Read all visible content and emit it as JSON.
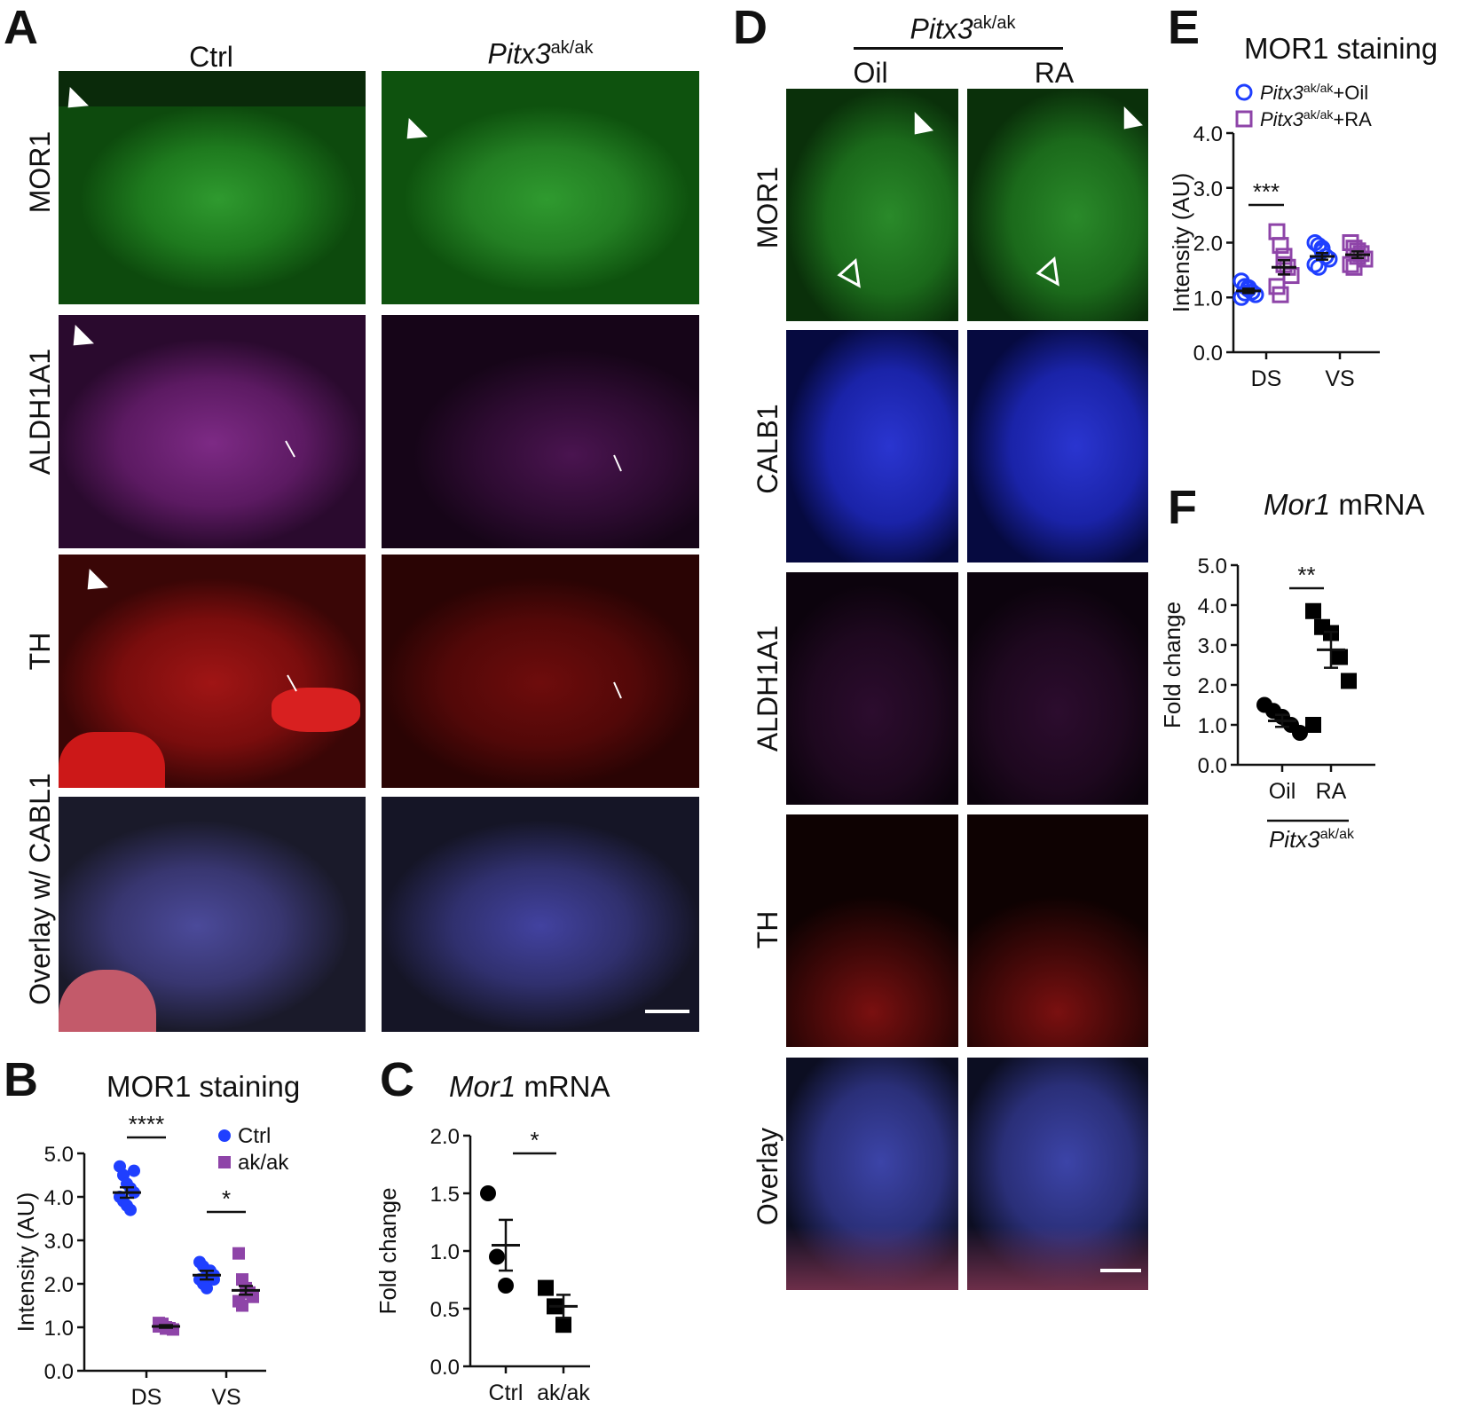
{
  "panels": {
    "A": {
      "letter": "A",
      "col_headers": [
        {
          "main": "Ctrl",
          "sup": ""
        },
        {
          "main": "Pitx3",
          "sup": "ak/ak"
        }
      ],
      "row_labels": [
        "MOR1",
        "ALDH1A1",
        "TH",
        "Overlay w/ CABL1"
      ],
      "channel_colors": [
        "#1f8a1f",
        "#6a1c6f",
        "#8a1010",
        "#4a4a7a"
      ]
    },
    "B": {
      "letter": "B",
      "title": "MOR1 staining"
    },
    "C": {
      "letter": "C",
      "title_italic": "Mor1",
      "title_rest": " mRNA"
    },
    "D": {
      "letter": "D",
      "group_main": "Pitx3",
      "group_sup": "ak/ak",
      "col_headers": [
        "Oil",
        "RA"
      ],
      "row_labels": [
        "MOR1",
        "CALB1",
        "ALDH1A1",
        "TH",
        "Overlay"
      ],
      "channel_colors": [
        "#1f8a1f",
        "#1420b0",
        "#3a0d3c",
        "#4a0a0a",
        "#3a3a70"
      ]
    },
    "E": {
      "letter": "E",
      "title": "MOR1 staining"
    },
    "F": {
      "letter": "F",
      "title_italic": "Mor1",
      "title_rest": " mRNA"
    }
  },
  "chart_data": [
    {
      "id": "B",
      "type": "scatter",
      "title": "MOR1 staining",
      "ylabel": "Intensity (AU)",
      "xlabel": "",
      "categories": [
        "DS",
        "VS"
      ],
      "ylim": [
        0,
        5
      ],
      "yticks": [
        "0.0",
        "1.0",
        "2.0",
        "3.0",
        "4.0",
        "5.0"
      ],
      "series": [
        {
          "name": "Ctrl",
          "color": "#1f3fff",
          "marker": "circle-filled",
          "means": [
            4.1,
            2.2
          ],
          "sem": [
            0.12,
            0.1
          ],
          "points": [
            [
              4.7,
              4.5,
              4.3,
              4.2,
              4.1,
              4.0,
              3.9,
              3.8,
              3.7,
              4.6
            ],
            [
              2.5,
              2.4,
              2.3,
              2.2,
              2.2,
              2.1,
              2.0,
              1.9,
              2.3,
              2.1
            ]
          ]
        },
        {
          "name": "ak/ak",
          "color": "#8e44a8",
          "marker": "square-filled",
          "means": [
            1.02,
            1.85
          ],
          "sem": [
            0.03,
            0.1
          ],
          "points": [
            [
              1.1,
              1.05,
              1.0,
              0.98,
              0.95,
              1.02,
              1.08,
              0.97
            ],
            [
              2.7,
              2.1,
              1.9,
              1.8,
              1.7,
              1.6,
              1.5,
              1.85
            ]
          ]
        }
      ],
      "significance": [
        {
          "category": "DS",
          "text": "****"
        },
        {
          "category": "VS",
          "text": "*"
        }
      ],
      "legend": "top-right"
    },
    {
      "id": "C",
      "type": "scatter",
      "title": "Mor1 mRNA",
      "ylabel": "Fold change",
      "xlabel": "",
      "categories": [
        "Ctrl",
        "ak/ak"
      ],
      "ylim": [
        0,
        2
      ],
      "yticks": [
        "0.0",
        "0.5",
        "1.0",
        "1.5",
        "2.0"
      ],
      "series": [
        {
          "name": "Ctrl",
          "color": "#000000",
          "marker": "circle-filled",
          "means": [
            1.05
          ],
          "sem": [
            0.22
          ],
          "points": [
            [
              1.5,
              0.95,
              0.7
            ]
          ]
        },
        {
          "name": "ak/ak",
          "color": "#000000",
          "marker": "square-filled",
          "means": [
            0.52
          ],
          "sem": [
            0.1
          ],
          "points": [
            [
              0.68,
              0.52,
              0.36
            ]
          ]
        }
      ],
      "significance": [
        {
          "category": "between",
          "text": "*"
        }
      ]
    },
    {
      "id": "E",
      "type": "scatter",
      "title": "MOR1 staining",
      "ylabel": "Intensity (AU)",
      "xlabel": "",
      "categories": [
        "DS",
        "VS"
      ],
      "ylim": [
        0,
        4
      ],
      "yticks": [
        "0.0",
        "1.0",
        "2.0",
        "3.0",
        "4.0"
      ],
      "series": [
        {
          "name": "Pitx3ak/ak+Oil",
          "label_main": "Pitx3",
          "label_sup": "ak/ak",
          "label_tail": "+Oil",
          "color": "#1f3fff",
          "marker": "circle-open",
          "means": [
            1.12,
            1.75
          ],
          "sem": [
            0.04,
            0.06
          ],
          "points": [
            [
              1.3,
              1.2,
              1.15,
              1.1,
              1.05,
              1.0,
              1.08,
              1.18
            ],
            [
              2.0,
              1.95,
              1.85,
              1.75,
              1.7,
              1.6,
              1.55,
              1.9
            ]
          ]
        },
        {
          "name": "Pitx3ak/ak+RA",
          "label_main": "Pitx3",
          "label_sup": "ak/ak",
          "label_tail": "+RA",
          "color": "#8e44a8",
          "marker": "square-open",
          "means": [
            1.55,
            1.78
          ],
          "sem": [
            0.13,
            0.06
          ],
          "points": [
            [
              2.2,
              1.95,
              1.75,
              1.55,
              1.4,
              1.2,
              1.05,
              1.6
            ],
            [
              2.0,
              1.9,
              1.85,
              1.8,
              1.7,
              1.6,
              1.55,
              1.75
            ]
          ]
        }
      ],
      "significance": [
        {
          "category": "DS",
          "text": "***"
        }
      ],
      "legend": "top-right"
    },
    {
      "id": "F",
      "type": "scatter",
      "title": "Mor1 mRNA",
      "ylabel": "Fold change",
      "xlabel": "Pitx3ak/ak",
      "xlabel_main": "Pitx3",
      "xlabel_sup": "ak/ak",
      "categories": [
        "Oil",
        "RA"
      ],
      "ylim": [
        0,
        5
      ],
      "yticks": [
        "0.0",
        "1.0",
        "2.0",
        "3.0",
        "4.0",
        "5.0"
      ],
      "series": [
        {
          "name": "Oil",
          "color": "#000000",
          "marker": "circle-filled",
          "means": [
            1.1
          ],
          "sem": [
            0.15
          ],
          "points": [
            [
              1.5,
              1.35,
              1.2,
              1.0,
              0.8
            ]
          ]
        },
        {
          "name": "RA",
          "color": "#000000",
          "marker": "square-filled",
          "means": [
            2.88
          ],
          "sem": [
            0.45
          ],
          "points": [
            [
              3.85,
              3.45,
              3.3,
              2.7,
              2.1,
              1.0
            ]
          ]
        }
      ],
      "significance": [
        {
          "category": "between",
          "text": "**"
        }
      ]
    }
  ]
}
